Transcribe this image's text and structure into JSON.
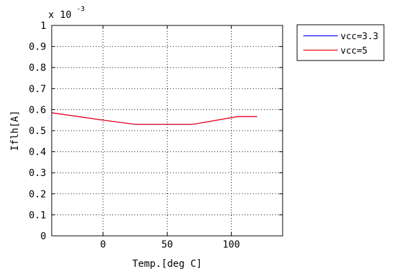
{
  "chart_data": {
    "type": "line",
    "xlabel": "Temp.[deg C]",
    "ylabel": "Iflh[A]",
    "y_multiplier": {
      "base": "x 10",
      "exponent": "-3"
    },
    "xlim": [
      -40,
      140
    ],
    "ylim": [
      0,
      1
    ],
    "xticks": [
      0,
      50,
      100
    ],
    "yticks": [
      0,
      0.1,
      0.2,
      0.3,
      0.4,
      0.5,
      0.6,
      0.7,
      0.8,
      0.9,
      1
    ],
    "ytick_labels": [
      "0",
      "0.1",
      "0.2",
      "0.3",
      "0.4",
      "0.5",
      "0.6",
      "0.7",
      "0.8",
      "0.9",
      "1"
    ],
    "grid": true,
    "legend_position": "outside-top-right",
    "series": [
      {
        "name": "vcc=3.3",
        "color": "#0000ff",
        "x": [
          -40,
          0,
          25,
          70,
          105,
          120
        ],
        "y": [
          0.585,
          0.55,
          0.53,
          0.53,
          0.567,
          0.567
        ]
      },
      {
        "name": "vcc=5",
        "color": "#ff0000",
        "x": [
          -40,
          0,
          25,
          70,
          105,
          120
        ],
        "y": [
          0.585,
          0.55,
          0.53,
          0.53,
          0.567,
          0.567
        ]
      }
    ]
  }
}
